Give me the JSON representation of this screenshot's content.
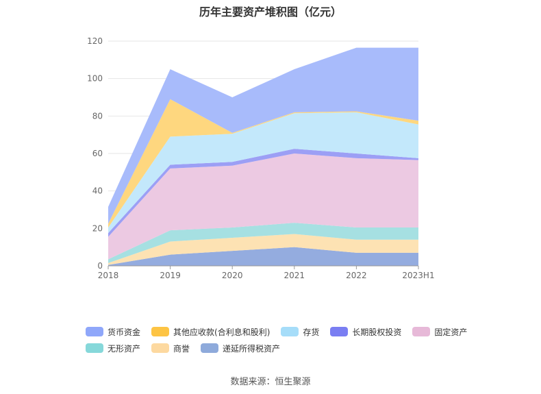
{
  "chart_data": {
    "type": "area",
    "stacked": true,
    "title": "历年主要资产堆积图（亿元）",
    "categories": [
      "2018",
      "2019",
      "2020",
      "2021",
      "2022",
      "2023H1"
    ],
    "ylim": [
      0,
      120
    ],
    "yticks": [
      0,
      20,
      40,
      60,
      80,
      100,
      120
    ],
    "grid": true,
    "legend_position": "bottom",
    "series": [
      {
        "name": "递延所得税资产",
        "color": "#94acdf",
        "values": [
          0.5,
          6,
          8,
          10,
          7,
          7
        ]
      },
      {
        "name": "商誉",
        "color": "#fde2b3",
        "values": [
          1,
          7,
          7,
          7,
          7,
          7
        ]
      },
      {
        "name": "无形资产",
        "color": "#a6e0e2",
        "values": [
          2,
          6,
          5.5,
          6,
          6.5,
          6.5
        ]
      },
      {
        "name": "固定资产",
        "color": "#ecc9e2",
        "values": [
          12,
          33,
          33,
          37,
          37,
          36
        ]
      },
      {
        "name": "长期股权投资",
        "color": "#9c9ff5",
        "values": [
          2,
          2,
          2,
          2.5,
          2.5,
          1
        ]
      },
      {
        "name": "存货",
        "color": "#c3e8fb",
        "values": [
          3,
          15,
          15,
          19,
          22,
          18
        ]
      },
      {
        "name": "其他应收款(合利息和股利)",
        "color": "#fed77f",
        "values": [
          2,
          20,
          0.5,
          0.5,
          0.5,
          2
        ]
      },
      {
        "name": "货币资金",
        "color": "#a8bbfb",
        "values": [
          9,
          16,
          19,
          23,
          34,
          39
        ]
      }
    ]
  },
  "legend": {
    "rows": [
      [
        {
          "label": "货币资金",
          "color": "#8fa7fa"
        },
        {
          "label": "其他应收款(合利息和股利)",
          "color": "#fdc444"
        },
        {
          "label": "存货",
          "color": "#a6ddf9"
        },
        {
          "label": "长期股权投资",
          "color": "#7a7ef2"
        },
        {
          "label": "固定资产",
          "color": "#e7b9d8"
        }
      ],
      [
        {
          "label": "无形资产",
          "color": "#86d8da"
        },
        {
          "label": "商誉",
          "color": "#fdd9a0"
        },
        {
          "label": "递延所得税资产",
          "color": "#8eaadb"
        }
      ]
    ]
  },
  "source_text": "数据来源：恒生聚源"
}
